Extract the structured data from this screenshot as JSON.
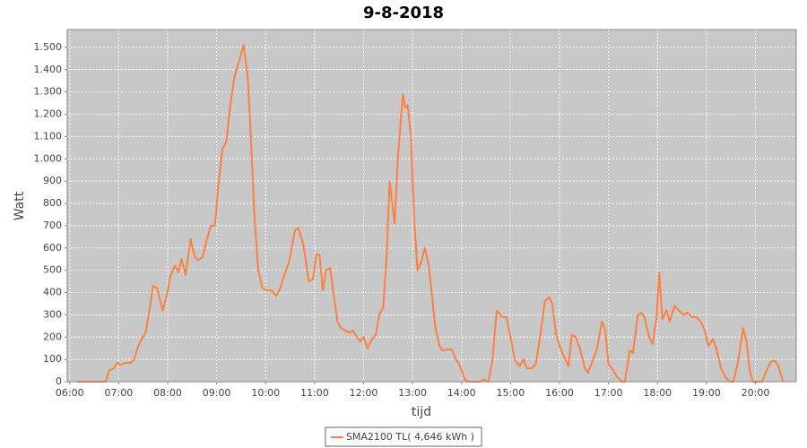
{
  "chart_data": {
    "type": "line",
    "title": "9-8-2018",
    "xlabel": "tijd",
    "ylabel": "Watt",
    "x": [
      "06:09",
      "06:44",
      "06:48",
      "06:54",
      "06:58",
      "07:03",
      "07:08",
      "07:15",
      "07:19",
      "07:24",
      "07:28",
      "07:33",
      "07:38",
      "07:42",
      "07:47",
      "07:51",
      "07:54",
      "07:59",
      "08:04",
      "08:09",
      "08:13",
      "08:17",
      "08:22",
      "08:28",
      "08:33",
      "08:37",
      "08:43",
      "08:48",
      "08:53",
      "08:58",
      "09:02",
      "09:07",
      "09:12",
      "09:17",
      "09:22",
      "09:27",
      "09:33",
      "09:38",
      "09:42",
      "09:46",
      "09:51",
      "09:56",
      "10:02",
      "10:07",
      "10:13",
      "10:18",
      "10:24",
      "10:29",
      "10:36",
      "10:40",
      "10:46",
      "10:50",
      "10:53",
      "10:58",
      "11:02",
      "11:06",
      "11:10",
      "11:14",
      "11:19",
      "11:23",
      "11:28",
      "11:32",
      "11:37",
      "11:43",
      "11:47",
      "11:52",
      "11:56",
      "12:00",
      "12:05",
      "12:10",
      "12:15",
      "12:19",
      "12:24",
      "12:28",
      "12:32",
      "12:38",
      "12:42",
      "12:48",
      "12:51",
      "12:54",
      "12:58",
      "13:02",
      "13:06",
      "13:11",
      "13:15",
      "13:20",
      "13:24",
      "13:28",
      "13:33",
      "13:37",
      "13:43",
      "13:48",
      "13:53",
      "13:57",
      "14:04",
      "14:08",
      "14:22",
      "14:28",
      "14:33",
      "14:38",
      "14:43",
      "14:50",
      "14:55",
      "15:00",
      "15:05",
      "15:11",
      "15:16",
      "15:20",
      "15:26",
      "15:31",
      "15:37",
      "15:42",
      "15:47",
      "15:51",
      "15:56",
      "16:01",
      "16:07",
      "16:11",
      "16:15",
      "16:20",
      "16:25",
      "16:31",
      "16:35",
      "16:41",
      "16:46",
      "16:52",
      "16:56",
      "17:00",
      "17:06",
      "17:11",
      "17:17",
      "17:20",
      "17:26",
      "17:30",
      "17:36",
      "17:40",
      "17:44",
      "17:50",
      "17:54",
      "17:59",
      "18:02",
      "18:06",
      "18:11",
      "18:15",
      "18:21",
      "18:26",
      "18:32",
      "18:37",
      "18:42",
      "18:47",
      "18:53",
      "18:58",
      "19:02",
      "19:08",
      "19:12",
      "19:18",
      "19:23",
      "19:29",
      "19:33",
      "19:38",
      "19:42",
      "19:45",
      "19:49",
      "19:53",
      "19:57",
      "20:08",
      "20:15",
      "20:19",
      "20:24",
      "20:28",
      "20:34"
    ],
    "series": [
      {
        "name": "SMA2100 TL( 4,646 kWh )",
        "color": "#ff8040",
        "values": [
          0,
          0,
          50,
          60,
          85,
          75,
          85,
          85,
          100,
          160,
          190,
          220,
          330,
          430,
          420,
          360,
          320,
          390,
          480,
          520,
          490,
          550,
          480,
          640,
          560,
          545,
          560,
          640,
          700,
          700,
          880,
          1040,
          1080,
          1250,
          1370,
          1430,
          1510,
          1370,
          1100,
          760,
          500,
          420,
          410,
          410,
          385,
          420,
          490,
          540,
          680,
          690,
          620,
          520,
          450,
          460,
          570,
          570,
          410,
          500,
          510,
          400,
          270,
          240,
          230,
          220,
          230,
          200,
          180,
          200,
          150,
          190,
          210,
          300,
          330,
          550,
          900,
          710,
          1000,
          1290,
          1230,
          1240,
          1100,
          730,
          500,
          540,
          600,
          520,
          380,
          240,
          160,
          140,
          145,
          145,
          100,
          80,
          10,
          0,
          0,
          10,
          0,
          100,
          320,
          290,
          290,
          200,
          100,
          70,
          100,
          60,
          60,
          80,
          220,
          360,
          380,
          350,
          210,
          150,
          100,
          70,
          210,
          200,
          150,
          60,
          40,
          100,
          150,
          270,
          230,
          80,
          50,
          20,
          0,
          0,
          140,
          130,
          300,
          310,
          290,
          200,
          170,
          290,
          490,
          280,
          320,
          270,
          340,
          320,
          300,
          310,
          290,
          290,
          270,
          230,
          160,
          190,
          150,
          60,
          20,
          0,
          0,
          80,
          170,
          240,
          180,
          50,
          0,
          0,
          60,
          90,
          95,
          70,
          0
        ]
      }
    ],
    "xlim": [
      "05:57",
      "20:50"
    ],
    "xticks": [
      "06:00",
      "07:00",
      "08:00",
      "09:00",
      "10:00",
      "11:00",
      "12:00",
      "13:00",
      "14:00",
      "15:00",
      "16:00",
      "17:00",
      "18:00",
      "19:00",
      "20:00"
    ],
    "ylim": [
      0,
      1580
    ],
    "yticks": [
      0,
      100,
      200,
      300,
      400,
      500,
      600,
      700,
      800,
      900,
      {
        "value": 1000,
        "label": "1.000"
      },
      {
        "value": 1100,
        "label": "1.100"
      },
      {
        "value": 1200,
        "label": "1.200"
      },
      {
        "value": 1300,
        "label": "1.300"
      },
      {
        "value": 1400,
        "label": "1.400"
      },
      {
        "value": 1500,
        "label": "1.500"
      }
    ],
    "grid": true,
    "legend": "bottom"
  }
}
